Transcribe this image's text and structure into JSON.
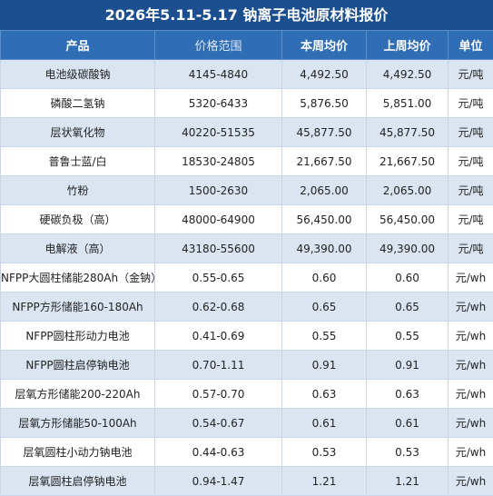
{
  "title": "2026年5.11-5.17 钠离子电池原材料报价",
  "table": {
    "header": [
      "产品",
      "价格范围",
      "本周均价",
      "上周均价",
      "单位"
    ],
    "rows": [
      [
        "电池级碳酸钠",
        "4145-4840",
        "4,492.50",
        "4,492.50",
        "元/吨"
      ],
      [
        "磷酸二氢钠",
        "5320-6433",
        "5,876.50",
        "5,851.00",
        "元/吨"
      ],
      [
        "层状氧化物",
        "40220-51535",
        "45,877.50",
        "45,877.50",
        "元/吨"
      ],
      [
        "普鲁士蓝/白",
        "18530-24805",
        "21,667.50",
        "21,667.50",
        "元/吨"
      ],
      [
        "竹粉",
        "1500-2630",
        "2,065.00",
        "2,065.00",
        "元/吨"
      ],
      [
        "硬碳负极（高）",
        "48000-64900",
        "56,450.00",
        "56,450.00",
        "元/吨"
      ],
      [
        "电解液（高）",
        "43180-55600",
        "49,390.00",
        "49,390.00",
        "元/吨"
      ],
      [
        "NFPP大圆柱储能280Ah（金钠）",
        "0.55-0.65",
        "0.60",
        "0.60",
        "元/wh"
      ],
      [
        "NFPP方形储能160-180Ah",
        "0.62-0.68",
        "0.65",
        "0.65",
        "元/wh"
      ],
      [
        "NFPP圆柱形动力电池",
        "0.41-0.69",
        "0.55",
        "0.55",
        "元/wh"
      ],
      [
        "NFPP圆柱启停钠电池",
        "0.70-1.11",
        "0.91",
        "0.91",
        "元/wh"
      ],
      [
        "层氧方形储能200-220Ah",
        "0.57-0.70",
        "0.63",
        "0.63",
        "元/wh"
      ],
      [
        "层氧方形储能50-100Ah",
        "0.54-0.67",
        "0.61",
        "0.61",
        "元/wh"
      ],
      [
        "层氧圆柱小动力钠电池",
        "0.44-0.63",
        "0.53",
        "0.53",
        "元/wh"
      ],
      [
        "层氧圆柱启停钠电池",
        "0.94-1.47",
        "1.21",
        "1.21",
        "元/wh"
      ]
    ]
  }
}
